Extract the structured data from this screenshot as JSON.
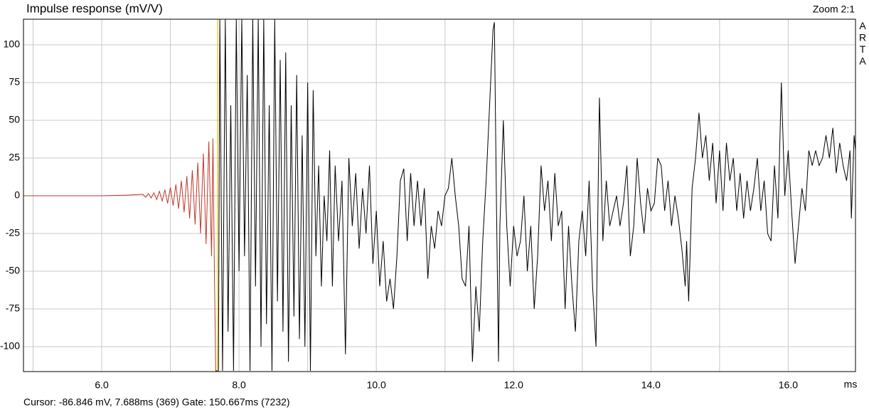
{
  "chart_data": {
    "type": "line",
    "title": "Impulse response (mV/V)",
    "zoom_label": "Zoom 2:1",
    "brand": "ARTA",
    "x_unit": "ms",
    "status": "Cursor: -86.846 mV, 7.688ms (369)  Gate: 150.667ms (7232)",
    "xlim": [
      4.86,
      16.98
    ],
    "ylim": [
      -116.5,
      117
    ],
    "xticks": [
      {
        "value": 6,
        "label": "6.0"
      },
      {
        "value": 8,
        "label": "8.0"
      },
      {
        "value": 10,
        "label": "10.0"
      },
      {
        "value": 12,
        "label": "12.0"
      },
      {
        "value": 14,
        "label": "14.0"
      },
      {
        "value": 16,
        "label": "16.0"
      }
    ],
    "xminor": [
      5,
      7,
      9,
      11,
      13,
      15
    ],
    "yticks": [
      -100,
      -75,
      -50,
      -25,
      0,
      25,
      50,
      75,
      100
    ],
    "grid": true,
    "cursor": {
      "x": 7.688,
      "color": "#e8c800"
    },
    "series": [
      {
        "color": "#c0392b",
        "x": [
          4.86,
          5.5,
          6.0,
          6.4,
          6.6,
          6.64,
          6.68,
          6.72,
          6.76,
          6.8,
          6.84,
          6.88,
          6.92,
          6.96,
          7.0,
          7.04,
          7.08,
          7.12,
          7.16,
          7.2,
          7.24,
          7.28,
          7.32,
          7.36,
          7.4,
          7.44,
          7.48,
          7.52,
          7.56,
          7.6,
          7.62,
          7.64,
          7.66
        ],
        "values": [
          0,
          0,
          0,
          0.5,
          1,
          -1,
          1.5,
          -1.5,
          2,
          -2.5,
          3,
          -3.5,
          4,
          -5,
          5.5,
          -6.5,
          7.5,
          -8.5,
          10,
          -11,
          13,
          -15,
          17,
          -19,
          22,
          -25,
          28,
          -32,
          36,
          -40,
          38,
          -45,
          -116
        ]
      },
      {
        "color": "#000000",
        "x": [
          7.66,
          7.7,
          7.72,
          7.76,
          7.8,
          7.84,
          7.88,
          7.92,
          7.96,
          8.0,
          8.04,
          8.08,
          8.12,
          8.16,
          8.2,
          8.24,
          8.28,
          8.32,
          8.36,
          8.4,
          8.44,
          8.48,
          8.52,
          8.56,
          8.6,
          8.64,
          8.68,
          8.72,
          8.76,
          8.8,
          8.84,
          8.88,
          8.92,
          8.96,
          9.0,
          9.04,
          9.08,
          9.12,
          9.16,
          9.2,
          9.24,
          9.28,
          9.32,
          9.36,
          9.4,
          9.45,
          9.5,
          9.55,
          9.6,
          9.65,
          9.7,
          9.75,
          9.8,
          9.85,
          9.9,
          9.95,
          10.0,
          10.05,
          10.1,
          10.15,
          10.2,
          10.25,
          10.3,
          10.35,
          10.4,
          10.45,
          10.5,
          10.55,
          10.6,
          10.65,
          10.7,
          10.75,
          10.8,
          10.85,
          10.9,
          10.95,
          11.0,
          11.05,
          11.1,
          11.15,
          11.2,
          11.25,
          11.3,
          11.35,
          11.4,
          11.45,
          11.5,
          11.55,
          11.6,
          11.65,
          11.7,
          11.72,
          11.75,
          11.78,
          11.8,
          11.85,
          11.9,
          11.95,
          12.0,
          12.05,
          12.1,
          12.15,
          12.2,
          12.25,
          12.3,
          12.35,
          12.4,
          12.45,
          12.5,
          12.55,
          12.6,
          12.65,
          12.7,
          12.75,
          12.8,
          12.85,
          12.9,
          12.95,
          13.0,
          13.05,
          13.1,
          13.15,
          13.2,
          13.25,
          13.3,
          13.35,
          13.4,
          13.45,
          13.5,
          13.55,
          13.6,
          13.65,
          13.7,
          13.75,
          13.8,
          13.85,
          13.9,
          13.95,
          14.0,
          14.05,
          14.1,
          14.15,
          14.2,
          14.25,
          14.3,
          14.35,
          14.4,
          14.45,
          14.5,
          14.52,
          14.55,
          14.6,
          14.65,
          14.7,
          14.75,
          14.8,
          14.85,
          14.9,
          14.95,
          15.0,
          15.05,
          15.1,
          15.15,
          15.2,
          15.25,
          15.3,
          15.35,
          15.4,
          15.45,
          15.5,
          15.55,
          15.6,
          15.65,
          15.7,
          15.75,
          15.8,
          15.85,
          15.9,
          15.95,
          16.0,
          16.05,
          16.1,
          16.15,
          16.2,
          16.25,
          16.3,
          16.35,
          16.4,
          16.45,
          16.5,
          16.55,
          16.6,
          16.65,
          16.7,
          16.75,
          16.8,
          16.85,
          16.9,
          16.92,
          16.96,
          16.98
        ],
        "values": [
          -116,
          -116,
          117,
          -116,
          117,
          -90,
          60,
          -116,
          117,
          -50,
          117,
          -40,
          80,
          -116,
          117,
          -60,
          117,
          -100,
          117,
          -85,
          60,
          -116,
          117,
          -70,
          90,
          -90,
          95,
          -110,
          60,
          -80,
          80,
          -95,
          40,
          -100,
          75,
          -116,
          70,
          -40,
          20,
          -60,
          0,
          -30,
          30,
          -60,
          20,
          -30,
          10,
          -105,
          25,
          -20,
          15,
          -35,
          5,
          -25,
          20,
          -45,
          -10,
          -60,
          -30,
          -70,
          -55,
          -75,
          -40,
          10,
          18,
          -30,
          15,
          -20,
          10,
          -20,
          5,
          -55,
          -20,
          -35,
          -10,
          -20,
          0,
          5,
          25,
          0,
          -20,
          -55,
          -60,
          -20,
          -110,
          -60,
          -90,
          -30,
          10,
          60,
          110,
          115,
          -5,
          -110,
          -20,
          50,
          -20,
          -60,
          -20,
          -40,
          -30,
          0,
          -50,
          -20,
          -75,
          -40,
          20,
          -10,
          10,
          -30,
          15,
          -20,
          -10,
          -75,
          -20,
          -60,
          -90,
          -30,
          -10,
          -40,
          10,
          -60,
          -100,
          65,
          -30,
          10,
          -20,
          -10,
          0,
          -20,
          -5,
          20,
          -40,
          -20,
          25,
          -5,
          -25,
          5,
          -10,
          -5,
          25,
          20,
          -10,
          10,
          -20,
          0,
          -15,
          -35,
          -60,
          -30,
          -70,
          5,
          25,
          55,
          25,
          40,
          10,
          35,
          -5,
          30,
          -10,
          35,
          10,
          25,
          -10,
          15,
          -15,
          10,
          -10,
          5,
          25,
          -10,
          10,
          -25,
          -30,
          20,
          -15,
          75,
          0,
          30,
          -10,
          -45,
          -20,
          5,
          -10,
          30,
          20,
          30,
          20,
          25,
          40,
          25,
          45,
          15,
          35,
          20,
          10,
          30,
          -15,
          40,
          30
        ]
      }
    ]
  }
}
